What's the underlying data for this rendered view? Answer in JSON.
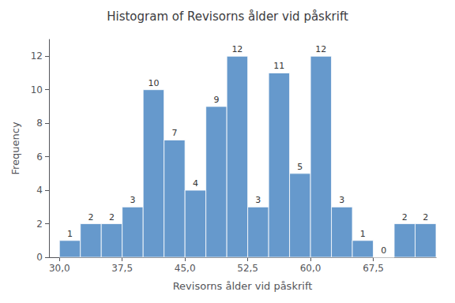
{
  "chart_data": {
    "type": "histogram",
    "title": "Histogram of Revisorns ålder vid påskrift",
    "xlabel": "Revisorns ålder vid påskrift",
    "ylabel": "Frequency",
    "bins": [
      30.0,
      32.5,
      35.0,
      37.5,
      40.0,
      42.5,
      45.0,
      47.5,
      50.0,
      52.5,
      55.0,
      57.5,
      60.0,
      62.5,
      65.0,
      67.5,
      70.0,
      72.5,
      75.0
    ],
    "counts": [
      1,
      2,
      2,
      3,
      10,
      7,
      4,
      9,
      12,
      3,
      11,
      5,
      12,
      3,
      1,
      0,
      2,
      2
    ],
    "color": "#6699CC",
    "xlim": [
      28.75,
      75.0
    ],
    "ylim": [
      0,
      13
    ],
    "xticks": [
      {
        "value": 30.0,
        "label": "30,0"
      },
      {
        "value": 37.5,
        "label": "37,5"
      },
      {
        "value": 45.0,
        "label": "45,0"
      },
      {
        "value": 52.5,
        "label": "52,5"
      },
      {
        "value": 60.0,
        "label": "60,0"
      },
      {
        "value": 67.5,
        "label": "67,5"
      }
    ],
    "yticks": [
      0,
      2,
      4,
      6,
      8,
      10,
      12
    ],
    "grid": false,
    "data_labels": true
  }
}
